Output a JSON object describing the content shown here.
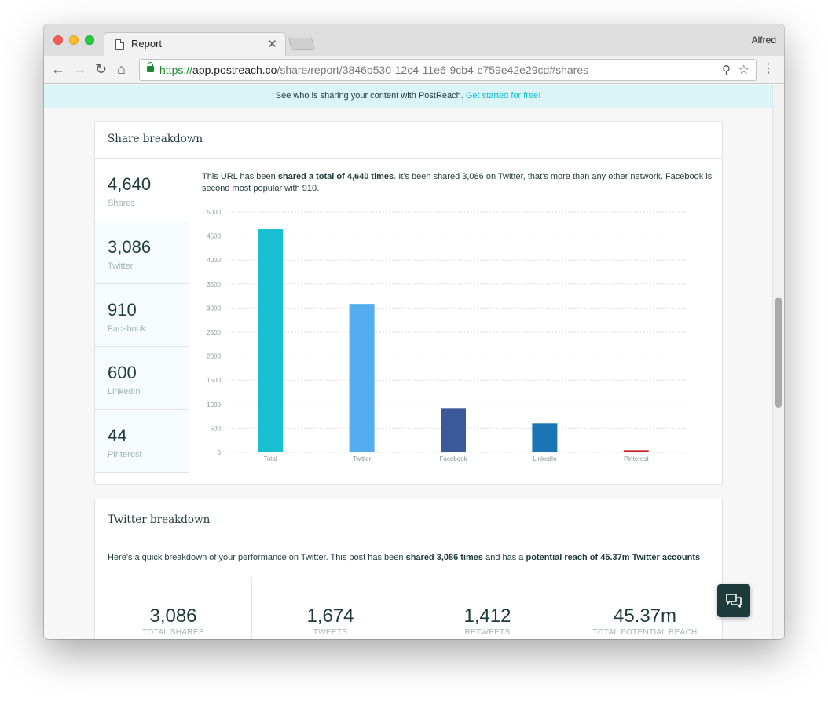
{
  "browser": {
    "tab_title": "Report",
    "profile_name": "Alfred",
    "url_scheme": "https://",
    "url_host": "app.postreach.co",
    "url_path": "/share/report/3846b530-12c4-11e6-9cb4-c759e42e29cd#shares"
  },
  "banner": {
    "text": "See who is sharing your content with PostReach.",
    "link": "Get started for free!"
  },
  "share_breakdown": {
    "title": "Share breakdown",
    "stats": [
      {
        "value": "4,640",
        "label": "Shares"
      },
      {
        "value": "3,086",
        "label": "Twitter"
      },
      {
        "value": "910",
        "label": "Facebook"
      },
      {
        "value": "600",
        "label": "LinkedIn"
      },
      {
        "value": "44",
        "label": "Pinterest"
      }
    ],
    "summary_pre": "This URL has been ",
    "summary_bold": "shared a total of 4,640 times",
    "summary_post": ". It's been shared 3,086 on Twitter, that's more than any other network. Facebook is second most popular with 910."
  },
  "chart_data": {
    "type": "bar",
    "categories": [
      "Total",
      "Twitter",
      "Facebook",
      "LinkedIn",
      "Pinterest"
    ],
    "values": [
      4640,
      3086,
      910,
      600,
      44
    ],
    "colors": [
      "#17bfd1",
      "#55acee",
      "#3b5998",
      "#1b75b5",
      "#cb2027"
    ],
    "ylim": [
      0,
      5000
    ],
    "yticks": [
      0,
      500,
      1000,
      1500,
      2000,
      2500,
      3000,
      3500,
      4000,
      4500,
      5000
    ],
    "grid": true,
    "title": "",
    "xlabel": "",
    "ylabel": ""
  },
  "twitter_breakdown": {
    "title": "Twitter breakdown",
    "summary_pre": "Here's a quick breakdown of your performance on Twitter. This post has been ",
    "summary_bold1": "shared 3,086 times",
    "summary_mid": " and has a ",
    "summary_bold2": "potential reach of 45.37m Twitter accounts",
    "stats": [
      {
        "value": "3,086",
        "label": "TOTAL SHARES"
      },
      {
        "value": "1,674",
        "label": "TWEETS"
      },
      {
        "value": "1,412",
        "label": "RETWEETS"
      },
      {
        "value": "45.37m",
        "label": "TOTAL POTENTIAL REACH"
      }
    ]
  },
  "colors": {
    "accent": "#17bfd1",
    "dark_text": "#1e3b3b",
    "muted_text": "#a7b3b3",
    "banner_bg": "#dbf4f8"
  }
}
